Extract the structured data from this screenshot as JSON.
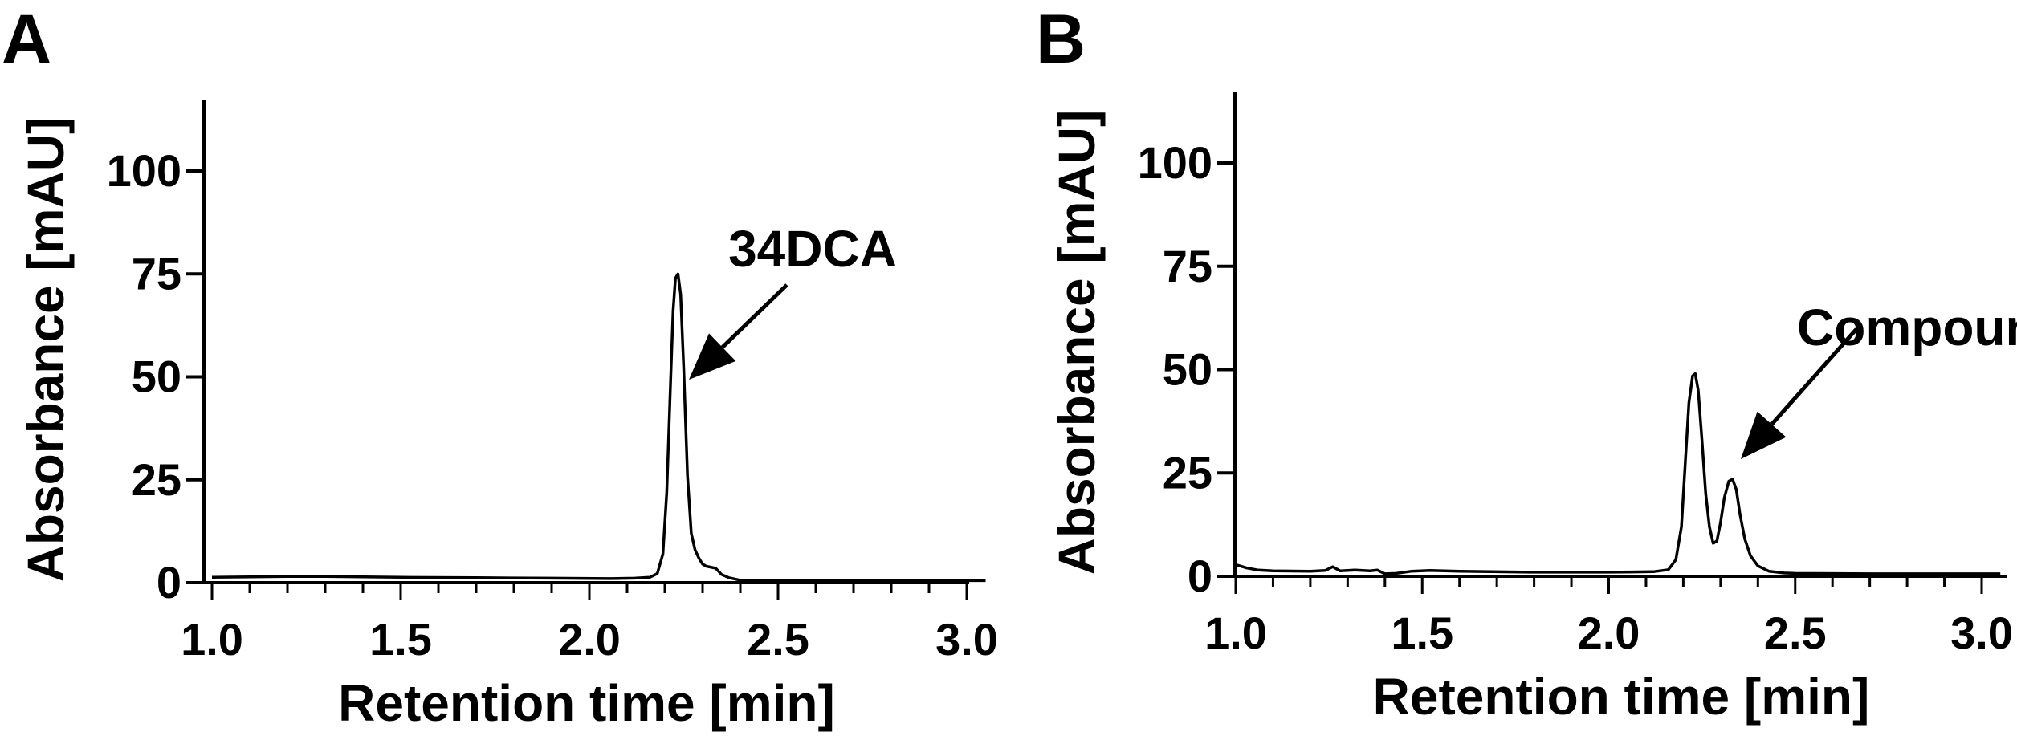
{
  "chart_data": [
    {
      "panel_label": "A",
      "type": "line",
      "xlabel": "Retention time [min]",
      "ylabel": "Absorbance [mAU]",
      "xlim": [
        1.0,
        3.05
      ],
      "ylim": [
        0,
        115
      ],
      "xticks": [
        1.0,
        1.5,
        2.0,
        2.5,
        3.0
      ],
      "xtick_labels": [
        "1.0",
        "1.5",
        "2.0",
        "2.5",
        "3.0"
      ],
      "yticks": [
        0,
        25,
        50,
        75,
        100
      ],
      "ytick_labels": [
        "0",
        "25",
        "50",
        "75",
        "100"
      ],
      "grid": false,
      "series": [
        {
          "x": [
            1.0,
            1.1,
            1.2,
            1.3,
            1.5,
            1.7,
            1.9,
            2.05,
            2.12,
            2.16,
            2.18,
            2.195,
            2.205,
            2.215,
            2.222,
            2.228,
            2.235,
            2.242,
            2.25,
            2.26,
            2.27,
            2.28,
            2.29,
            2.3,
            2.31,
            2.32,
            2.335,
            2.35,
            2.37,
            2.4,
            2.45,
            2.5,
            2.7,
            2.9,
            3.05
          ],
          "y": [
            1.3,
            1.4,
            1.5,
            1.5,
            1.3,
            1.2,
            1.1,
            1.0,
            1.1,
            1.3,
            2.2,
            7,
            22,
            48,
            66,
            74,
            75,
            70,
            52,
            26,
            12,
            8,
            6,
            4.5,
            4,
            3.8,
            3.5,
            2,
            1.2,
            0.6,
            0.5,
            0.5,
            0.5,
            0.5,
            0.5
          ]
        }
      ],
      "annotations": [
        {
          "text": "34DCA",
          "x": 2.23,
          "y": 75
        }
      ]
    },
    {
      "panel_label": "B",
      "type": "line",
      "xlabel": "Retention time [min]",
      "ylabel": "Absorbance [mAU]",
      "xlim": [
        1.0,
        3.05
      ],
      "ylim": [
        0,
        115
      ],
      "xticks": [
        1.0,
        1.5,
        2.0,
        2.5,
        3.0
      ],
      "xtick_labels": [
        "1.0",
        "1.5",
        "2.0",
        "2.5",
        "3.0"
      ],
      "yticks": [
        0,
        25,
        50,
        75,
        100
      ],
      "ytick_labels": [
        "0",
        "25",
        "50",
        "75",
        "100"
      ],
      "grid": false,
      "series": [
        {
          "x": [
            1.0,
            1.03,
            1.06,
            1.1,
            1.2,
            1.24,
            1.26,
            1.28,
            1.32,
            1.36,
            1.38,
            1.4,
            1.43,
            1.47,
            1.52,
            1.6,
            1.8,
            2.0,
            2.12,
            2.16,
            2.18,
            2.195,
            2.205,
            2.215,
            2.225,
            2.232,
            2.24,
            2.25,
            2.26,
            2.27,
            2.28,
            2.29,
            2.3,
            2.31,
            2.322,
            2.332,
            2.342,
            2.352,
            2.365,
            2.38,
            2.4,
            2.43,
            2.47,
            2.5,
            2.7,
            2.9,
            3.05
          ],
          "y": [
            2.8,
            2.0,
            1.5,
            1.3,
            1.2,
            1.4,
            2.3,
            1.3,
            1.5,
            1.3,
            1.5,
            0.6,
            0.7,
            1.2,
            1.4,
            1.2,
            1.0,
            1.0,
            1.1,
            1.6,
            4,
            12,
            27,
            42,
            48.5,
            49,
            45,
            33,
            20,
            12,
            8,
            8.5,
            13,
            19,
            23,
            23.5,
            21,
            15,
            9,
            5,
            2.5,
            1.2,
            0.8,
            0.7,
            0.6,
            0.6,
            0.6
          ]
        }
      ],
      "annotations": [
        {
          "text": "Compound I",
          "x": 2.34,
          "y": 23.5
        }
      ]
    }
  ]
}
